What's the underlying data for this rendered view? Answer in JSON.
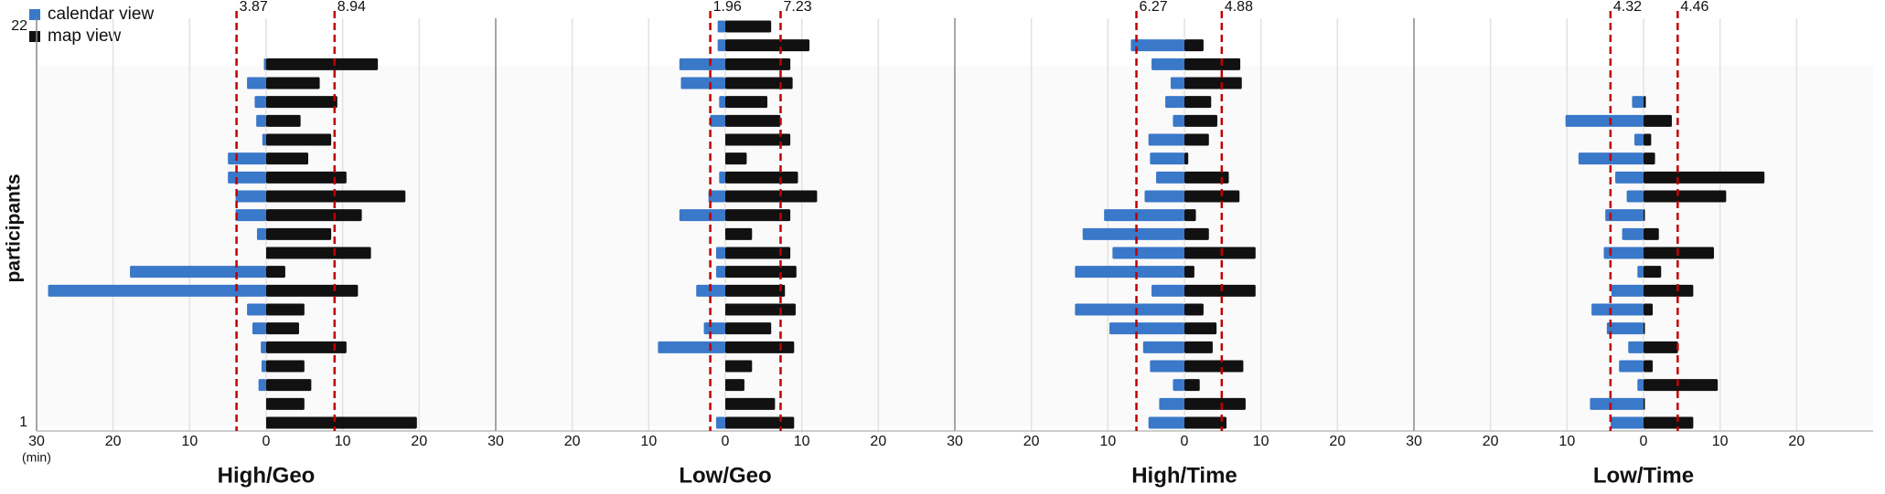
{
  "chart_data": {
    "type": "diverging_bar",
    "legend": [
      {
        "name": "calendar view",
        "color": "#3a78c9"
      },
      {
        "name": "map view",
        "color": "#111111"
      }
    ],
    "ylabel": "participants",
    "xlabel": "(min)",
    "categories": [
      "22",
      null,
      null,
      null,
      null,
      null,
      null,
      null,
      null,
      null,
      null,
      null,
      null,
      null,
      null,
      null,
      null,
      null,
      null,
      null,
      null,
      "1"
    ],
    "xlim": [
      -30,
      30
    ],
    "xticks": [
      {
        "value": -30,
        "label": "30"
      },
      {
        "value": -20,
        "label": "20"
      },
      {
        "value": -10,
        "label": "10"
      },
      0,
      10,
      20
    ],
    "grid": true,
    "panels": [
      {
        "title": "High/Geo",
        "means": [
          {
            "value": -3.87,
            "label": "3.87"
          },
          {
            "value": 8.94,
            "label": "8.94"
          }
        ],
        "series": [
          {
            "values": [
              null,
              null,
              -0.3,
              -2.5,
              -1.5,
              -1.3,
              -0.5,
              -5,
              -5,
              -4,
              -4,
              -1.2,
              0,
              -17.8,
              -28.5,
              -2.5,
              -1.8,
              -0.7,
              -0.6,
              -1,
              0,
              0
            ]
          },
          {
            "values": [
              null,
              null,
              14.6,
              7,
              9.3,
              4.5,
              8.5,
              5.5,
              10.5,
              18.2,
              12.5,
              8.5,
              13.7,
              2.5,
              12,
              5,
              4.3,
              10.5,
              5,
              5.9,
              5,
              19.7
            ]
          }
        ]
      },
      {
        "title": "Low/Geo",
        "means": [
          {
            "value": -1.96,
            "label": "1.96"
          },
          {
            "value": 7.23,
            "label": "7.23"
          }
        ],
        "series": [
          {
            "values": [
              -1,
              -1,
              -6,
              -5.8,
              -0.8,
              -2,
              0,
              0,
              -0.8,
              -2.2,
              -6,
              0,
              -1.2,
              -1.2,
              -3.8,
              0,
              -2.8,
              -8.8,
              0,
              0,
              0,
              -1.2
            ]
          },
          {
            "values": [
              6,
              11,
              8.5,
              8.8,
              5.5,
              7.2,
              8.5,
              2.8,
              9.5,
              12,
              8.5,
              3.5,
              8.5,
              9.3,
              7.8,
              9.2,
              6,
              9,
              3.5,
              2.5,
              6.5,
              9
            ]
          }
        ]
      },
      {
        "title": "High/Time",
        "means": [
          {
            "value": -6.27,
            "label": "6.27"
          },
          {
            "value": 4.88,
            "label": "4.88"
          }
        ],
        "series": [
          {
            "values": [
              null,
              -7,
              -4.3,
              -1.8,
              -2.5,
              -1.5,
              -4.7,
              -4.5,
              -3.7,
              -5.2,
              -10.5,
              -13.3,
              -9.4,
              -14.3,
              -4.3,
              -14.3,
              -9.8,
              -5.4,
              -4.5,
              -1.5,
              -3.3,
              -4.7
            ]
          },
          {
            "values": [
              null,
              2.5,
              7.3,
              7.5,
              3.5,
              4.3,
              3.2,
              0.5,
              5.8,
              7.2,
              1.5,
              3.2,
              9.3,
              1.3,
              9.3,
              2.5,
              4.2,
              3.7,
              7.7,
              2,
              8,
              5.5
            ]
          }
        ]
      },
      {
        "title": "Low/Time",
        "means": [
          {
            "value": -4.32,
            "label": "4.32"
          },
          {
            "value": 4.46,
            "label": "4.46"
          }
        ],
        "series": [
          {
            "values": [
              null,
              null,
              null,
              null,
              -1.5,
              -10.2,
              -1.2,
              -8.5,
              -3.7,
              -2.2,
              -5,
              -2.8,
              -5.2,
              -0.8,
              -4.2,
              -6.8,
              -4.8,
              -2,
              -3.2,
              -0.8,
              -7,
              -4.3
            ]
          },
          {
            "values": [
              null,
              null,
              null,
              null,
              0.3,
              3.7,
              1,
              1.5,
              15.8,
              10.8,
              0,
              2,
              9.2,
              2.3,
              6.5,
              1.2,
              0,
              4.5,
              1.2,
              9.7,
              0,
              6.5
            ]
          }
        ]
      }
    ]
  }
}
